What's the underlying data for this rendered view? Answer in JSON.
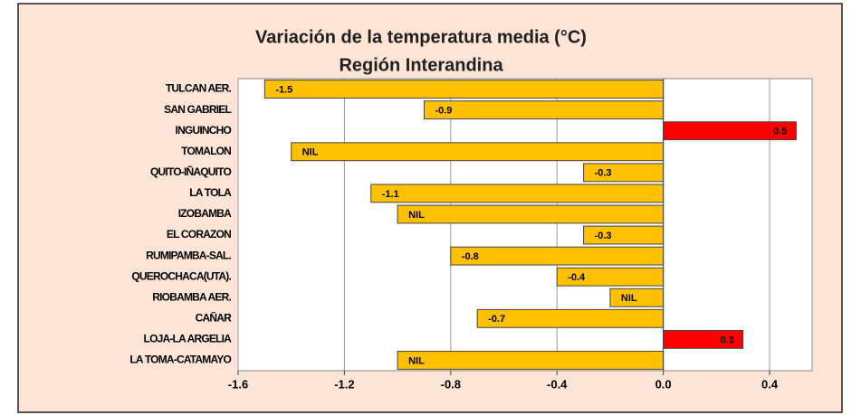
{
  "chart_data": {
    "type": "bar",
    "orientation": "horizontal",
    "title": [
      "Variación de la temperatura media (°C)",
      "Región Interandina"
    ],
    "categories": [
      "TULCAN AER.",
      "SAN GABRIEL",
      "INGUINCHO",
      "TOMALON",
      "QUITO-IÑAQUITO",
      "LA TOLA",
      "IZOBAMBA",
      "EL CORAZON",
      "RUMIPAMBA-SAL.",
      "QUEROCHACA(UTA).",
      "RIOBAMBA AER.",
      "CAÑAR",
      "LOJA-LA ARGELIA",
      "LA TOMA-CATAMAYO"
    ],
    "values": [
      -1.5,
      -0.9,
      0.5,
      -1.4,
      -0.3,
      -1.1,
      -1.0,
      -0.3,
      -0.8,
      -0.4,
      -0.2,
      -0.7,
      0.3,
      -1.0
    ],
    "value_labels": [
      "-1.5",
      "-0.9",
      "0.5",
      "NIL",
      "-0.3",
      "-1.1",
      "NIL",
      "-0.3",
      "-0.8",
      "-0.4",
      "NIL",
      "-0.7",
      "0.3",
      "NIL"
    ],
    "negative_color": "#ffc000",
    "positive_color": "#ff0000",
    "xlim": [
      -1.6,
      0.56
    ],
    "xticks": [
      -1.6,
      -1.2,
      -0.8,
      -0.4,
      {
        "value": 0,
        "label": "0.0"
      },
      0.4
    ],
    "grid": true
  }
}
